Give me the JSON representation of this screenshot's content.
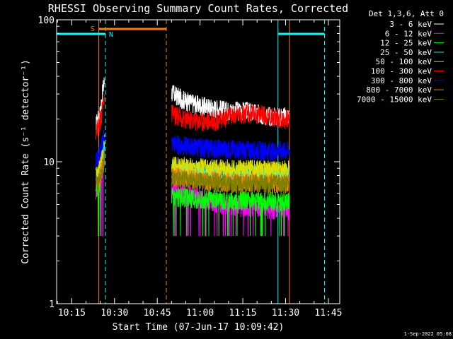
{
  "chart_data": {
    "type": "line",
    "title": "RHESSI Observing Summary Count Rates, Corrected",
    "xlabel": "Start Time (07-Jun-17 10:09:42)",
    "ylabel": "Corrected Count Rate (s⁻¹ detector⁻¹)",
    "yscale": "log",
    "ylim": [
      1,
      100
    ],
    "xlim": [
      "10:09:42",
      "11:49:00"
    ],
    "x_ticks": [
      "10:15",
      "10:30",
      "10:45",
      "11:00",
      "11:15",
      "11:30",
      "11:45"
    ],
    "y_ticks": [
      "1",
      "10",
      "100"
    ],
    "legend_header": "Det 1,3,6, Att 0",
    "legend_position": "top-right-outside",
    "timestamp": "1-Sep-2022 05:08",
    "annotations": [
      {
        "label": "S",
        "color": "#ff8000",
        "from": "10:24:30",
        "to": "10:48:10"
      },
      {
        "label": "N",
        "color": "#00ffff",
        "from": "10:09:42",
        "to": "10:26:50"
      }
    ],
    "lines": [
      {
        "type": "solid",
        "color": "#00ffff",
        "time": "10:09:42"
      },
      {
        "type": "solid",
        "color": "#ff8000",
        "time": "10:24:30"
      },
      {
        "type": "dashed",
        "color": "#00ffff",
        "time": "10:26:50"
      },
      {
        "type": "dashed",
        "color": "#ff8000",
        "time": "10:48:10"
      },
      {
        "type": "solid",
        "color": "#00ffff",
        "time": "11:27:20"
      },
      {
        "type": "solid",
        "color": "#ff8000",
        "time": "11:31:20"
      },
      {
        "type": "dashed",
        "color": "#00ffff",
        "time": "11:43:40"
      }
    ],
    "extra_bars": [
      {
        "color": "#00ffff",
        "from": "11:27:20",
        "to": "11:43:40",
        "y": 75
      }
    ],
    "series": [
      {
        "name": "3 - 6 keV",
        "color": "#ffffff",
        "x": [
          "10:23:30",
          "10:24:00",
          "10:24:30",
          "10:25:00",
          "10:25:30",
          "10:26:00",
          "10:26:30",
          "10:50:00",
          "10:52:00",
          "10:55:00",
          "11:00:00",
          "11:05:00",
          "11:10:00",
          "11:15:00",
          "11:20:00",
          "11:25:00",
          "11:30:00",
          "11:32:00"
        ],
        "values": [
          18,
          20,
          20,
          22,
          27,
          33,
          37,
          31,
          29,
          27,
          25,
          24,
          23,
          23,
          22,
          21,
          21,
          21
        ]
      },
      {
        "name": "6 - 12 keV",
        "color": "#ff00ff",
        "x": [
          "10:23:30",
          "10:24:30",
          "10:25:30",
          "10:26:30",
          "10:50:00",
          "10:55:00",
          "11:00:00",
          "11:05:00",
          "11:10:00",
          "11:15:00",
          "11:20:00",
          "11:25:00",
          "11:30:00",
          "11:32:00"
        ],
        "values": [
          6.2,
          6.8,
          8,
          11,
          6.5,
          6,
          5.6,
          5.2,
          5.0,
          4.8,
          4.7,
          4.6,
          4.6,
          4.6
        ]
      },
      {
        "name": "12 - 25 keV",
        "color": "#00ff00",
        "x": [
          "10:23:30",
          "10:24:30",
          "10:25:30",
          "10:26:30",
          "10:50:00",
          "10:55:00",
          "11:00:00",
          "11:05:00",
          "11:10:00",
          "11:15:00",
          "11:20:00",
          "11:25:00",
          "11:30:00",
          "11:32:00"
        ],
        "values": [
          6.5,
          7,
          9,
          12,
          5.8,
          5.6,
          5.5,
          5.5,
          5.4,
          5.4,
          5.3,
          5.3,
          5.3,
          5.3
        ]
      },
      {
        "name": "25 - 50 keV",
        "color": "#00ffff",
        "x": [
          "10:23:30",
          "10:24:30",
          "10:25:30",
          "10:26:30",
          "10:50:00",
          "10:55:00",
          "11:00:00",
          "11:05:00",
          "11:10:00",
          "11:15:00",
          "11:20:00",
          "11:25:00",
          "11:30:00",
          "11:32:00"
        ],
        "values": [
          7.5,
          8,
          10,
          13,
          9,
          8.7,
          8.5,
          8.4,
          8.3,
          8.3,
          8.2,
          8.2,
          8.2,
          8.2
        ]
      },
      {
        "name": "50 - 100 keV",
        "color": "#dddd00",
        "x": [
          "10:23:30",
          "10:24:30",
          "10:25:30",
          "10:26:30",
          "10:50:00",
          "10:55:00",
          "11:00:00",
          "11:05:00",
          "11:10:00",
          "11:15:00",
          "11:20:00",
          "11:25:00",
          "11:30:00",
          "11:32:00"
        ],
        "values": [
          8,
          9,
          11,
          14,
          9.5,
          9.3,
          9.1,
          9.0,
          9.0,
          8.9,
          8.9,
          8.9,
          8.8,
          8.8
        ]
      },
      {
        "name": "100 - 300 keV",
        "color": "#ff0000",
        "x": [
          "10:23:30",
          "10:24:30",
          "10:25:30",
          "10:26:30",
          "10:50:00",
          "10:52:00",
          "10:55:00",
          "11:00:00",
          "11:05:00",
          "11:10:00",
          "11:15:00",
          "11:20:00",
          "11:25:00",
          "11:30:00",
          "11:32:00"
        ],
        "values": [
          17,
          18,
          22,
          30,
          22,
          21,
          20,
          19.5,
          19.5,
          21,
          22,
          22,
          21,
          20,
          20
        ]
      },
      {
        "name": "300 - 800 keV",
        "color": "#0000ff",
        "x": [
          "10:23:30",
          "10:24:30",
          "10:25:30",
          "10:26:30",
          "10:50:00",
          "10:55:00",
          "11:00:00",
          "11:05:00",
          "11:10:00",
          "11:15:00",
          "11:20:00",
          "11:25:00",
          "11:30:00",
          "11:32:00"
        ],
        "values": [
          10,
          11,
          13,
          16,
          13.5,
          13,
          12.7,
          12.5,
          12.3,
          12.2,
          12.1,
          12,
          12,
          12
        ]
      },
      {
        "name": "800 - 7000 keV",
        "color": "#ff8000",
        "x": [
          "10:23:30",
          "10:24:30",
          "10:25:30",
          "10:26:30",
          "10:50:00",
          "10:55:00",
          "11:00:00",
          "11:05:00",
          "11:10:00",
          "11:15:00",
          "11:20:00",
          "11:25:00",
          "11:30:00",
          "11:32:00"
        ],
        "values": [
          7,
          7.5,
          9,
          11,
          8,
          7.7,
          7.5,
          7.4,
          7.3,
          7.2,
          7.2,
          7.1,
          7.1,
          7.1
        ]
      },
      {
        "name": "7000 - 15000 keV",
        "color": "#808000",
        "x": [
          "10:23:30",
          "10:24:30",
          "10:25:30",
          "10:26:30",
          "10:50:00",
          "10:55:00",
          "11:00:00",
          "11:05:00",
          "11:10:00",
          "11:15:00",
          "11:20:00",
          "11:25:00",
          "11:30:00",
          "11:32:00"
        ],
        "values": [
          7,
          7.3,
          8.5,
          10.5,
          7.8,
          7.5,
          7.3,
          7.2,
          7.1,
          7.0,
          7.0,
          7.0,
          7.0,
          7.0
        ]
      }
    ]
  }
}
